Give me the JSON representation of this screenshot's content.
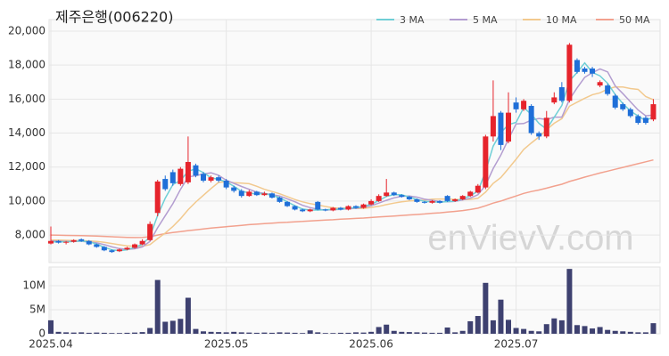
{
  "chart_data": {
    "type": "candlestick",
    "title": "제주은행(006220)",
    "watermark": "enVievV.com",
    "legend": "top-right",
    "grid": true,
    "up_color": "#e6242c",
    "down_color": "#1f6fd8",
    "categories": [
      "2025.04",
      null,
      null,
      null,
      null,
      null,
      null,
      null,
      null,
      null,
      null,
      null,
      null,
      null,
      null,
      null,
      null,
      null,
      null,
      null,
      null,
      null,
      null,
      "2025.05",
      null,
      null,
      null,
      null,
      null,
      null,
      null,
      null,
      null,
      null,
      null,
      null,
      null,
      null,
      null,
      null,
      null,
      null,
      "2025.06",
      null,
      null,
      null,
      null,
      null,
      null,
      null,
      null,
      null,
      null,
      null,
      null,
      null,
      null,
      null,
      null,
      null,
      null,
      "2025.07",
      null,
      null,
      null,
      null,
      null,
      null,
      null,
      null,
      null,
      null,
      null,
      null,
      null,
      null,
      null,
      null,
      null,
      null
    ],
    "open": [
      7500,
      7650,
      7550,
      7600,
      7750,
      7650,
      7450,
      7300,
      7100,
      7050,
      7150,
      7250,
      7450,
      7700,
      9300,
      11300,
      11700,
      11000,
      11100,
      12100,
      11600,
      11200,
      11400,
      11200,
      10800,
      10600,
      10300,
      10550,
      10350,
      10450,
      10200,
      9950,
      9700,
      9500,
      9400,
      9950,
      9500,
      9450,
      9600,
      9500,
      9700,
      9600,
      9800,
      10000,
      10300,
      10500,
      10350,
      10250,
      10100,
      9950,
      9900,
      10000,
      10300,
      10000,
      10100,
      10300,
      10500,
      10800,
      13800,
      15200,
      13500,
      15800,
      15400,
      15600,
      14000,
      13800,
      15800,
      16700,
      15900,
      18300,
      17800,
      17800,
      16800,
      16800,
      16200,
      15700,
      15400,
      15000,
      14900,
      14800
    ],
    "high": [
      8500,
      7700,
      7650,
      7750,
      7800,
      7700,
      7500,
      7350,
      7150,
      7200,
      7300,
      7500,
      7750,
      8800,
      11250,
      11500,
      11850,
      12000,
      13800,
      12200,
      11700,
      11500,
      11500,
      11300,
      10900,
      10700,
      10650,
      10600,
      10550,
      10500,
      10250,
      10000,
      9750,
      9550,
      9550,
      10000,
      9550,
      9650,
      9650,
      9750,
      9750,
      9850,
      10100,
      10400,
      11300,
      10550,
      10400,
      10300,
      10150,
      10000,
      10050,
      10050,
      10350,
      10150,
      10350,
      10600,
      11000,
      13900,
      17100,
      15300,
      16400,
      16100,
      16000,
      15700,
      14100,
      15300,
      16400,
      17000,
      19300,
      18400,
      17900,
      17900,
      17100,
      16900,
      16300,
      15800,
      15500,
      15100,
      15000,
      16000
    ],
    "low": [
      7450,
      7500,
      7450,
      7550,
      7600,
      7400,
      7250,
      7050,
      6950,
      7000,
      7100,
      7200,
      7400,
      7650,
      9100,
      10600,
      10900,
      10900,
      11000,
      11400,
      11100,
      11100,
      11100,
      10700,
      10500,
      10200,
      10250,
      10300,
      10300,
      10150,
      9900,
      9650,
      9450,
      9350,
      9350,
      9450,
      9400,
      9400,
      9450,
      9450,
      9550,
      9550,
      9750,
      9950,
      10250,
      10300,
      10200,
      10050,
      9900,
      9850,
      9850,
      9850,
      9950,
      9950,
      10050,
      10250,
      10450,
      10700,
      13500,
      13000,
      13400,
      15200,
      15300,
      13900,
      13600,
      13700,
      15700,
      15800,
      15800,
      17500,
      17500,
      17300,
      16700,
      16200,
      15400,
      15300,
      14900,
      14500,
      14500,
      14700
    ],
    "close": [
      7650,
      7550,
      7600,
      7700,
      7650,
      7450,
      7300,
      7100,
      7000,
      7150,
      7250,
      7450,
      7650,
      8650,
      11150,
      10700,
      11050,
      11900,
      12300,
      11500,
      11200,
      11400,
      11200,
      10800,
      10600,
      10300,
      10550,
      10350,
      10450,
      10200,
      9950,
      9700,
      9500,
      9400,
      9500,
      9500,
      9450,
      9600,
      9500,
      9700,
      9600,
      9800,
      10000,
      10300,
      10500,
      10350,
      10250,
      10100,
      9950,
      9900,
      10000,
      9900,
      10000,
      10100,
      10300,
      10550,
      10900,
      13800,
      15000,
      13300,
      15200,
      15400,
      15900,
      14000,
      13800,
      14900,
      16100,
      15900,
      19200,
      17600,
      17600,
      17500,
      17000,
      16300,
      15500,
      15400,
      15000,
      14600,
      14600,
      15700
    ],
    "ylim": [
      6380,
      20680
    ],
    "yticks": [
      {
        "value": 8000,
        "label": "8,000"
      },
      {
        "value": 10000,
        "label": "10,000"
      },
      {
        "value": 12000,
        "label": "12,000"
      },
      {
        "value": 14000,
        "label": "14,000"
      },
      {
        "value": 16000,
        "label": "16,000"
      },
      {
        "value": 18000,
        "label": "18,000"
      },
      {
        "value": 20000,
        "label": "20,000"
      }
    ],
    "series": [
      {
        "name": "3 MA",
        "color": "#6fcfd6",
        "values": [
          7600,
          7600,
          7600,
          7620,
          7650,
          7600,
          7470,
          7280,
          7130,
          7080,
          7130,
          7280,
          7450,
          7920,
          9150,
          10170,
          10970,
          11220,
          11750,
          11900,
          11670,
          11370,
          11270,
          11130,
          10870,
          10570,
          10480,
          10400,
          10450,
          10330,
          10200,
          9950,
          9720,
          9530,
          9470,
          9470,
          9480,
          9520,
          9520,
          9600,
          9600,
          9700,
          9800,
          10030,
          10270,
          10380,
          10370,
          10230,
          10100,
          9980,
          9950,
          9930,
          9970,
          10000,
          10130,
          10320,
          10580,
          11750,
          13230,
          14030,
          14500,
          14630,
          15500,
          15100,
          14570,
          14230,
          14930,
          15630,
          17070,
          17570,
          18130,
          17570,
          17370,
          16930,
          16270,
          15730,
          15300,
          15000,
          14730,
          14970
        ]
      },
      {
        "name": "5 MA",
        "color": "#b39dd0",
        "values": [
          7650,
          7630,
          7620,
          7630,
          7630,
          7590,
          7540,
          7440,
          7300,
          7200,
          7160,
          7190,
          7300,
          7630,
          8430,
          9140,
          9840,
          10690,
          11420,
          11490,
          11590,
          11660,
          11520,
          11220,
          11040,
          10860,
          10690,
          10520,
          10450,
          10370,
          10300,
          10130,
          9960,
          9750,
          9610,
          9520,
          9470,
          9490,
          9510,
          9550,
          9570,
          9640,
          9720,
          9880,
          10040,
          10190,
          10280,
          10300,
          10230,
          10110,
          10040,
          9970,
          9950,
          9980,
          10060,
          10170,
          10370,
          10930,
          11910,
          12710,
          13640,
          14540,
          14560,
          14760,
          14860,
          14800,
          14940,
          14940,
          15980,
          16660,
          17280,
          17560,
          17780,
          17600,
          16780,
          16320,
          15840,
          15360,
          15020,
          15060
        ]
      },
      {
        "name": "10 MA",
        "color": "#f2c98e",
        "values": [
          7700,
          7700,
          7690,
          7680,
          7670,
          7650,
          7620,
          7570,
          7500,
          7430,
          7360,
          7340,
          7340,
          7440,
          7790,
          8120,
          8500,
          8960,
          9490,
          9940,
          10340,
          10740,
          11100,
          11130,
          11080,
          11050,
          11020,
          10870,
          10690,
          10560,
          10430,
          10260,
          10090,
          9950,
          9850,
          9770,
          9680,
          9600,
          9570,
          9600,
          9560,
          9570,
          9620,
          9690,
          9790,
          9880,
          9960,
          10010,
          10030,
          10050,
          10110,
          10120,
          10120,
          10100,
          10080,
          10100,
          10160,
          10530,
          11040,
          11380,
          11910,
          12460,
          13040,
          13420,
          13770,
          14200,
          14580,
          14850,
          15580,
          15820,
          16050,
          16260,
          16370,
          16590,
          16720,
          16710,
          16620,
          16570,
          16150,
          15960
        ]
      },
      {
        "name": "50 MA",
        "color": "#f2a18e",
        "values": [
          8000,
          7990,
          7980,
          7970,
          7960,
          7950,
          7940,
          7920,
          7900,
          7880,
          7860,
          7850,
          7860,
          7900,
          8000,
          8080,
          8150,
          8200,
          8260,
          8310,
          8360,
          8410,
          8450,
          8490,
          8530,
          8570,
          8610,
          8640,
          8670,
          8700,
          8730,
          8750,
          8780,
          8800,
          8830,
          8850,
          8880,
          8900,
          8930,
          8950,
          8980,
          9000,
          9030,
          9060,
          9090,
          9120,
          9150,
          9180,
          9210,
          9240,
          9280,
          9310,
          9350,
          9390,
          9440,
          9500,
          9580,
          9720,
          9880,
          10000,
          10150,
          10300,
          10450,
          10560,
          10650,
          10760,
          10880,
          10990,
          11150,
          11280,
          11410,
          11530,
          11650,
          11760,
          11870,
          11980,
          12090,
          12200,
          12310,
          12420
        ]
      }
    ],
    "volume": {
      "color": "#3e4170",
      "values": [
        2800000,
        400000,
        300000,
        250000,
        300000,
        200000,
        250000,
        200000,
        150000,
        150000,
        200000,
        250000,
        350000,
        1200000,
        11200000,
        2500000,
        2700000,
        3100000,
        7500000,
        1000000,
        500000,
        400000,
        350000,
        300000,
        400000,
        300000,
        250000,
        200000,
        250000,
        200000,
        300000,
        250000,
        200000,
        150000,
        700000,
        300000,
        150000,
        150000,
        200000,
        200000,
        300000,
        250000,
        400000,
        1400000,
        1900000,
        600000,
        400000,
        350000,
        300000,
        250000,
        200000,
        200000,
        1300000,
        300000,
        600000,
        2600000,
        3700000,
        10600000,
        2800000,
        7100000,
        2900000,
        1200000,
        1000000,
        600000,
        500000,
        2000000,
        3200000,
        2800000,
        13500000,
        1800000,
        1600000,
        1100000,
        1400000,
        800000,
        600000,
        500000,
        400000,
        300000,
        300000,
        2200000
      ],
      "ylim": [
        0,
        13900000
      ],
      "yticks": [
        0,
        {
          "value": 5000000,
          "label": "5M"
        },
        {
          "value": 10000000,
          "label": "10M"
        }
      ]
    }
  }
}
